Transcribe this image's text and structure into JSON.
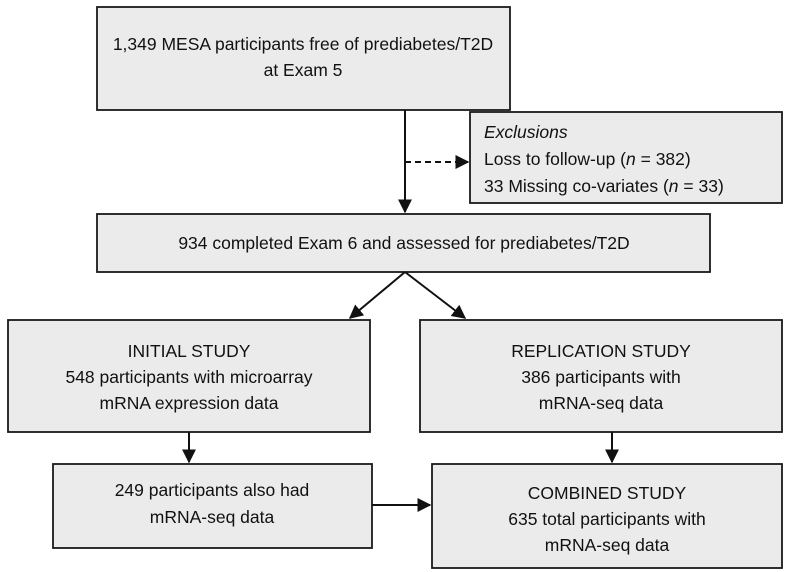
{
  "nodes": [
    {
      "lines": [
        [
          {
            "text": "1,349 MESA participants free of prediabetes/T2D"
          }
        ],
        [
          {
            "text": "at Exam 5"
          }
        ]
      ]
    },
    {
      "lines": [
        [
          {
            "text": "Exclusions",
            "italic": true
          }
        ],
        [
          {
            "text": "Loss to follow-up ("
          },
          {
            "text": "n",
            "italic": true
          },
          {
            "text": " = 382)"
          }
        ],
        [
          {
            "text": "33 Missing co-variates ("
          },
          {
            "text": "n",
            "italic": true
          },
          {
            "text": " = 33)"
          }
        ]
      ]
    },
    {
      "lines": [
        [
          {
            "text": "934 completed Exam 6 and assessed for prediabetes/T2D"
          }
        ]
      ]
    },
    {
      "lines": [
        [
          {
            "text": "INITIAL STUDY"
          }
        ],
        [
          {
            "text": "548 participants with microarray"
          }
        ],
        [
          {
            "text": "mRNA expression data"
          }
        ]
      ]
    },
    {
      "lines": [
        [
          {
            "text": "REPLICATION STUDY"
          }
        ],
        [
          {
            "text": "386 participants with"
          }
        ],
        [
          {
            "text": "mRNA-seq data"
          }
        ]
      ]
    },
    {
      "lines": [
        [
          {
            "text": "249 participants also had"
          }
        ],
        [
          {
            "text": "mRNA-seq data"
          }
        ]
      ]
    },
    {
      "lines": [
        [
          {
            "text": "COMBINED STUDY"
          }
        ],
        [
          {
            "text": "635 total participants with"
          }
        ],
        [
          {
            "text": "mRNA-seq data"
          }
        ]
      ]
    }
  ]
}
